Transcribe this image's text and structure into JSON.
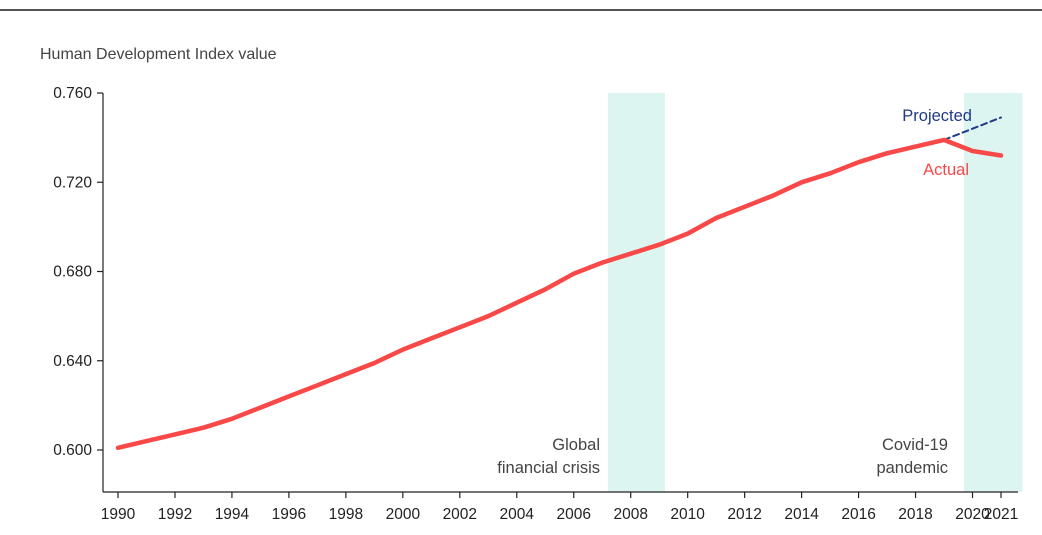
{
  "chart_data": {
    "type": "line",
    "ylabel": "Human Development Index value",
    "xlim": [
      1990,
      2021
    ],
    "ylim": [
      0.58,
      0.76
    ],
    "y_ticks": [
      0.6,
      0.64,
      0.68,
      0.72,
      0.76
    ],
    "y_tick_labels": [
      "0.600",
      "0.640",
      "0.680",
      "0.720",
      "0.760"
    ],
    "x_ticks": [
      1990,
      1992,
      1994,
      1996,
      1998,
      2000,
      2002,
      2004,
      2006,
      2008,
      2010,
      2012,
      2014,
      2016,
      2018,
      2020,
      2021
    ],
    "x_tick_labels": [
      "1990",
      "1992",
      "1994",
      "1996",
      "1998",
      "2000",
      "2002",
      "2004",
      "2006",
      "2008",
      "2010",
      "2012",
      "2014",
      "2016",
      "2018",
      "2020",
      "2021"
    ],
    "grid": false,
    "series": [
      {
        "name": "Actual",
        "color": "#f94848",
        "style": "solid",
        "x": [
          1990,
          1991,
          1992,
          1993,
          1994,
          1995,
          1996,
          1997,
          1998,
          1999,
          2000,
          2001,
          2002,
          2003,
          2004,
          2005,
          2006,
          2007,
          2008,
          2009,
          2010,
          2011,
          2012,
          2013,
          2014,
          2015,
          2016,
          2017,
          2018,
          2019,
          2020,
          2021
        ],
        "y": [
          0.601,
          0.604,
          0.607,
          0.61,
          0.614,
          0.619,
          0.624,
          0.629,
          0.634,
          0.639,
          0.645,
          0.65,
          0.655,
          0.66,
          0.666,
          0.672,
          0.679,
          0.684,
          0.688,
          0.692,
          0.697,
          0.704,
          0.709,
          0.714,
          0.72,
          0.724,
          0.729,
          0.733,
          0.736,
          0.739,
          0.734,
          0.732
        ]
      },
      {
        "name": "Projected",
        "color": "#1f3a8a",
        "style": "dashed",
        "x": [
          2019,
          2020,
          2021
        ],
        "y": [
          0.739,
          0.744,
          0.749
        ]
      }
    ],
    "shaded_periods": [
      {
        "from": 2007.2,
        "to": 2009.2,
        "label_lines": [
          "Global",
          "financial crisis"
        ]
      },
      {
        "from": 2019.7,
        "to": 2021.75,
        "label_lines": [
          "Covid-19",
          "pandemic"
        ]
      }
    ],
    "shade_color": "#dcf5f1"
  }
}
